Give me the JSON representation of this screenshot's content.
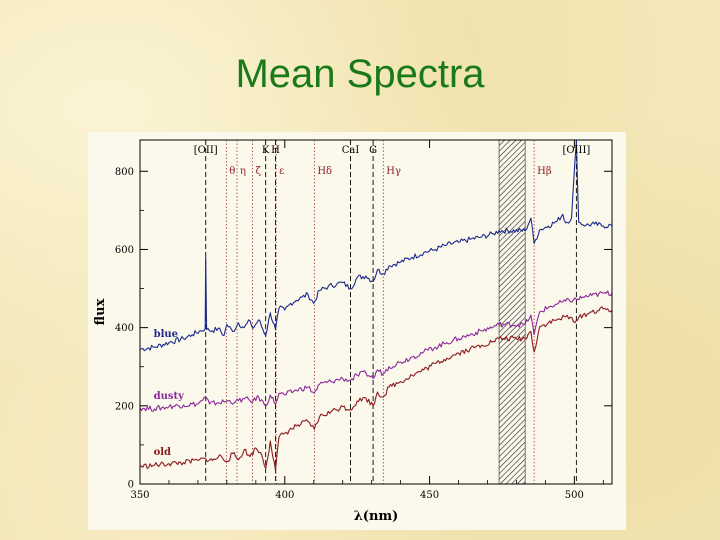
{
  "slide": {
    "title": "Mean Spectra"
  },
  "colors": {
    "title": "#1a7a1a",
    "blue": "#1d2a8c",
    "dusty": "#8a2a9a",
    "old": "#8c1c1c",
    "absorption_lines": "#8c1c1c",
    "emission_lines": "#000000"
  },
  "chart_data": {
    "type": "line",
    "xlabel": "λ(nm)",
    "ylabel": "flux",
    "xlim": [
      350,
      513
    ],
    "ylim": [
      0,
      880
    ],
    "x_ticks": [
      350,
      400,
      450,
      500
    ],
    "y_ticks": [
      0,
      200,
      400,
      600,
      800
    ],
    "masked_region": [
      474,
      483
    ],
    "emission_lines": [
      {
        "label": "[OII]",
        "x": 372.7
      },
      {
        "label": "K",
        "x": 393.4
      },
      {
        "label": "H",
        "x": 396.8
      },
      {
        "label": "CaI",
        "x": 422.7
      },
      {
        "label": "G",
        "x": 430.5
      },
      {
        "label": "[OIII]",
        "x": 500.7
      }
    ],
    "absorption_lines": [
      {
        "label": "θ",
        "x": 379.8
      },
      {
        "label": "η",
        "x": 383.5
      },
      {
        "label": "ζ",
        "x": 388.9
      },
      {
        "label": "ε",
        "x": 397.0
      },
      {
        "label": "Hδ",
        "x": 410.2
      },
      {
        "label": "Hγ",
        "x": 434.0
      },
      {
        "label": "Hβ",
        "x": 486.1
      }
    ],
    "series": [
      {
        "name": "blue",
        "points": [
          [
            350,
            345
          ],
          [
            355,
            350
          ],
          [
            360,
            362
          ],
          [
            365,
            372
          ],
          [
            368,
            382
          ],
          [
            371,
            392
          ],
          [
            372.5,
            398
          ],
          [
            372.7,
            580
          ],
          [
            373,
            395
          ],
          [
            375,
            392
          ],
          [
            377,
            398
          ],
          [
            379,
            380
          ],
          [
            380,
            408
          ],
          [
            382,
            390
          ],
          [
            384,
            412
          ],
          [
            386,
            400
          ],
          [
            388,
            418
          ],
          [
            389,
            398
          ],
          [
            391,
            420
          ],
          [
            393.4,
            380
          ],
          [
            395,
            438
          ],
          [
            396.8,
            395
          ],
          [
            398,
            450
          ],
          [
            400,
            445
          ],
          [
            402,
            462
          ],
          [
            404,
            470
          ],
          [
            406,
            478
          ],
          [
            408,
            485
          ],
          [
            410,
            462
          ],
          [
            412,
            495
          ],
          [
            415,
            505
          ],
          [
            418,
            512
          ],
          [
            420,
            515
          ],
          [
            422.7,
            500
          ],
          [
            425,
            528
          ],
          [
            428,
            532
          ],
          [
            430.5,
            518
          ],
          [
            432,
            548
          ],
          [
            434,
            538
          ],
          [
            436,
            558
          ],
          [
            440,
            568
          ],
          [
            444,
            580
          ],
          [
            448,
            592
          ],
          [
            452,
            600
          ],
          [
            456,
            612
          ],
          [
            460,
            618
          ],
          [
            464,
            626
          ],
          [
            468,
            632
          ],
          [
            472,
            640
          ],
          [
            474,
            648
          ],
          [
            483,
            648
          ],
          [
            485,
            680
          ],
          [
            486.1,
            615
          ],
          [
            488,
            650
          ],
          [
            491,
            660
          ],
          [
            494,
            672
          ],
          [
            496,
            690
          ],
          [
            497,
            668
          ],
          [
            499,
            680
          ],
          [
            500.7,
            878
          ],
          [
            501.5,
            670
          ],
          [
            504,
            662
          ],
          [
            507,
            665
          ],
          [
            510,
            660
          ],
          [
            513,
            662
          ]
        ]
      },
      {
        "name": "dusty",
        "points": [
          [
            350,
            195
          ],
          [
            355,
            192
          ],
          [
            360,
            198
          ],
          [
            365,
            202
          ],
          [
            370,
            205
          ],
          [
            372.7,
            222
          ],
          [
            374,
            205
          ],
          [
            377,
            208
          ],
          [
            380,
            212
          ],
          [
            383,
            210
          ],
          [
            386,
            218
          ],
          [
            389,
            212
          ],
          [
            391,
            222
          ],
          [
            393.4,
            200
          ],
          [
            395,
            228
          ],
          [
            396.8,
            205
          ],
          [
            398,
            232
          ],
          [
            400,
            228
          ],
          [
            404,
            240
          ],
          [
            408,
            248
          ],
          [
            410.2,
            232
          ],
          [
            412,
            255
          ],
          [
            416,
            262
          ],
          [
            420,
            270
          ],
          [
            422.7,
            265
          ],
          [
            425,
            278
          ],
          [
            428,
            284
          ],
          [
            430.5,
            270
          ],
          [
            432,
            292
          ],
          [
            434,
            282
          ],
          [
            436,
            300
          ],
          [
            440,
            312
          ],
          [
            444,
            325
          ],
          [
            448,
            338
          ],
          [
            452,
            350
          ],
          [
            456,
            362
          ],
          [
            460,
            372
          ],
          [
            464,
            382
          ],
          [
            468,
            392
          ],
          [
            472,
            402
          ],
          [
            474,
            408
          ],
          [
            483,
            408
          ],
          [
            485,
            432
          ],
          [
            486.1,
            382
          ],
          [
            488,
            440
          ],
          [
            491,
            452
          ],
          [
            494,
            460
          ],
          [
            497,
            468
          ],
          [
            500.7,
            472
          ],
          [
            503,
            478
          ],
          [
            506,
            482
          ],
          [
            510,
            488
          ],
          [
            513,
            488
          ]
        ]
      },
      {
        "name": "old",
        "points": [
          [
            350,
            45
          ],
          [
            355,
            48
          ],
          [
            360,
            52
          ],
          [
            365,
            55
          ],
          [
            370,
            60
          ],
          [
            372.7,
            65
          ],
          [
            375,
            60
          ],
          [
            378,
            72
          ],
          [
            380,
            58
          ],
          [
            382,
            78
          ],
          [
            384,
            62
          ],
          [
            386,
            88
          ],
          [
            388,
            70
          ],
          [
            390,
            92
          ],
          [
            392,
            75
          ],
          [
            393.4,
            40
          ],
          [
            395,
            110
          ],
          [
            396.8,
            35
          ],
          [
            398,
            120
          ],
          [
            400,
            130
          ],
          [
            404,
            148
          ],
          [
            408,
            160
          ],
          [
            410.2,
            140
          ],
          [
            412,
            172
          ],
          [
            416,
            185
          ],
          [
            420,
            198
          ],
          [
            422.7,
            190
          ],
          [
            425,
            212
          ],
          [
            428,
            220
          ],
          [
            430.5,
            200
          ],
          [
            432,
            235
          ],
          [
            434,
            222
          ],
          [
            436,
            248
          ],
          [
            440,
            262
          ],
          [
            444,
            278
          ],
          [
            448,
            292
          ],
          [
            452,
            308
          ],
          [
            456,
            322
          ],
          [
            460,
            335
          ],
          [
            464,
            345
          ],
          [
            468,
            355
          ],
          [
            472,
            365
          ],
          [
            474,
            372
          ],
          [
            483,
            372
          ],
          [
            485,
            390
          ],
          [
            486.1,
            338
          ],
          [
            488,
            402
          ],
          [
            491,
            412
          ],
          [
            494,
            420
          ],
          [
            497,
            428
          ],
          [
            500.7,
            418
          ],
          [
            503,
            432
          ],
          [
            506,
            440
          ],
          [
            510,
            448
          ],
          [
            513,
            445
          ]
        ]
      }
    ]
  }
}
